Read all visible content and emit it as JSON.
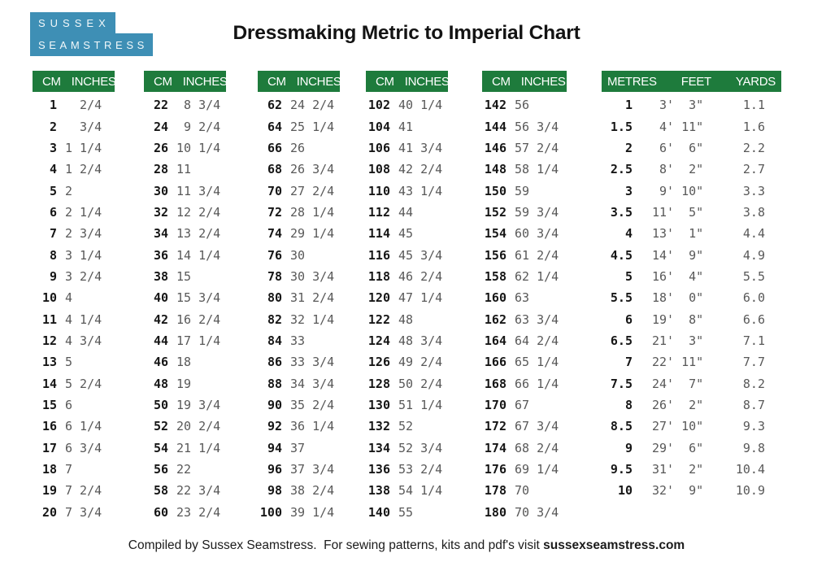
{
  "logo": {
    "line1": "SUSSEX",
    "line2": "SEAMSTRESS"
  },
  "title": "Dressmaking Metric to Imperial Chart",
  "colors": {
    "header_green": "#1E7B3C",
    "logo_blue": "#3E8FB5",
    "cm_text": "#161616",
    "inches_text": "#585858"
  },
  "cm_tables": [
    {
      "headers": [
        "CM",
        "INCHES"
      ],
      "rows": [
        [
          "1",
          "  2/4"
        ],
        [
          "2",
          "  3/4"
        ],
        [
          "3",
          "1 1/4"
        ],
        [
          "4",
          "1 2/4"
        ],
        [
          "5",
          "2"
        ],
        [
          "6",
          "2 1/4"
        ],
        [
          "7",
          "2 3/4"
        ],
        [
          "8",
          "3 1/4"
        ],
        [
          "9",
          "3 2/4"
        ],
        [
          "10",
          "4"
        ],
        [
          "11",
          "4 1/4"
        ],
        [
          "12",
          "4 3/4"
        ],
        [
          "13",
          "5"
        ],
        [
          "14",
          "5 2/4"
        ],
        [
          "15",
          "6"
        ],
        [
          "16",
          "6 1/4"
        ],
        [
          "17",
          "6 3/4"
        ],
        [
          "18",
          "7"
        ],
        [
          "19",
          "7 2/4"
        ],
        [
          "20",
          "7 3/4"
        ]
      ]
    },
    {
      "headers": [
        "CM",
        "INCHES"
      ],
      "rows": [
        [
          "22",
          " 8 3/4"
        ],
        [
          "24",
          " 9 2/4"
        ],
        [
          "26",
          "10 1/4"
        ],
        [
          "28",
          "11"
        ],
        [
          "30",
          "11 3/4"
        ],
        [
          "32",
          "12 2/4"
        ],
        [
          "34",
          "13 2/4"
        ],
        [
          "36",
          "14 1/4"
        ],
        [
          "38",
          "15"
        ],
        [
          "40",
          "15 3/4"
        ],
        [
          "42",
          "16 2/4"
        ],
        [
          "44",
          "17 1/4"
        ],
        [
          "46",
          "18"
        ],
        [
          "48",
          "19"
        ],
        [
          "50",
          "19 3/4"
        ],
        [
          "52",
          "20 2/4"
        ],
        [
          "54",
          "21 1/4"
        ],
        [
          "56",
          "22"
        ],
        [
          "58",
          "22 3/4"
        ],
        [
          "60",
          "23 2/4"
        ]
      ]
    },
    {
      "headers": [
        "CM",
        "INCHES"
      ],
      "rows": [
        [
          "62",
          "24 2/4"
        ],
        [
          "64",
          "25 1/4"
        ],
        [
          "66",
          "26"
        ],
        [
          "68",
          "26 3/4"
        ],
        [
          "70",
          "27 2/4"
        ],
        [
          "72",
          "28 1/4"
        ],
        [
          "74",
          "29 1/4"
        ],
        [
          "76",
          "30"
        ],
        [
          "78",
          "30 3/4"
        ],
        [
          "80",
          "31 2/4"
        ],
        [
          "82",
          "32 1/4"
        ],
        [
          "84",
          "33"
        ],
        [
          "86",
          "33 3/4"
        ],
        [
          "88",
          "34 3/4"
        ],
        [
          "90",
          "35 2/4"
        ],
        [
          "92",
          "36 1/4"
        ],
        [
          "94",
          "37"
        ],
        [
          "96",
          "37 3/4"
        ],
        [
          "98",
          "38 2/4"
        ],
        [
          "100",
          "39 1/4"
        ]
      ]
    },
    {
      "headers": [
        "CM",
        "INCHES"
      ],
      "rows": [
        [
          "102",
          "40 1/4"
        ],
        [
          "104",
          "41"
        ],
        [
          "106",
          "41 3/4"
        ],
        [
          "108",
          "42 2/4"
        ],
        [
          "110",
          "43 1/4"
        ],
        [
          "112",
          "44"
        ],
        [
          "114",
          "45"
        ],
        [
          "116",
          "45 3/4"
        ],
        [
          "118",
          "46 2/4"
        ],
        [
          "120",
          "47 1/4"
        ],
        [
          "122",
          "48"
        ],
        [
          "124",
          "48 3/4"
        ],
        [
          "126",
          "49 2/4"
        ],
        [
          "128",
          "50 2/4"
        ],
        [
          "130",
          "51 1/4"
        ],
        [
          "132",
          "52"
        ],
        [
          "134",
          "52 3/4"
        ],
        [
          "136",
          "53 2/4"
        ],
        [
          "138",
          "54 1/4"
        ],
        [
          "140",
          "55"
        ]
      ]
    },
    {
      "headers": [
        "CM",
        "INCHES"
      ],
      "rows": [
        [
          "142",
          "56"
        ],
        [
          "144",
          "56 3/4"
        ],
        [
          "146",
          "57 2/4"
        ],
        [
          "148",
          "58 1/4"
        ],
        [
          "150",
          "59"
        ],
        [
          "152",
          "59 3/4"
        ],
        [
          "154",
          "60 3/4"
        ],
        [
          "156",
          "61 2/4"
        ],
        [
          "158",
          "62 1/4"
        ],
        [
          "160",
          "63"
        ],
        [
          "162",
          "63 3/4"
        ],
        [
          "164",
          "64 2/4"
        ],
        [
          "166",
          "65 1/4"
        ],
        [
          "168",
          "66 1/4"
        ],
        [
          "170",
          "67"
        ],
        [
          "172",
          "67 3/4"
        ],
        [
          "174",
          "68 2/4"
        ],
        [
          "176",
          "69 1/4"
        ],
        [
          "178",
          "70"
        ],
        [
          "180",
          "70 3/4"
        ]
      ]
    }
  ],
  "metres_table": {
    "headers": [
      "METRES",
      "FEET",
      "YARDS"
    ],
    "rows": [
      [
        "1",
        " 3'  3\"",
        "1.1"
      ],
      [
        "1.5",
        " 4' 11\"",
        "1.6"
      ],
      [
        "2",
        " 6'  6\"",
        "2.2"
      ],
      [
        "2.5",
        " 8'  2\"",
        "2.7"
      ],
      [
        "3",
        " 9' 10\"",
        "3.3"
      ],
      [
        "3.5",
        "11'  5\"",
        "3.8"
      ],
      [
        "4",
        "13'  1\"",
        "4.4"
      ],
      [
        "4.5",
        "14'  9\"",
        "4.9"
      ],
      [
        "5",
        "16'  4\"",
        "5.5"
      ],
      [
        "5.5",
        "18'  0\"",
        "6.0"
      ],
      [
        "6",
        "19'  8\"",
        "6.6"
      ],
      [
        "6.5",
        "21'  3\"",
        "7.1"
      ],
      [
        "7",
        "22' 11\"",
        "7.7"
      ],
      [
        "7.5",
        "24'  7\"",
        "8.2"
      ],
      [
        "8",
        "26'  2\"",
        "8.7"
      ],
      [
        "8.5",
        "27' 10\"",
        "9.3"
      ],
      [
        "9",
        "29'  6\"",
        "9.8"
      ],
      [
        "9.5",
        "31'  2\"",
        "10.4"
      ],
      [
        "10",
        "32'  9\"",
        "10.9"
      ]
    ]
  },
  "footer": {
    "text_regular": "Compiled by Sussex Seamstress.  For sewing patterns, kits and pdf's visit ",
    "text_bold": "sussexseamstress.com"
  }
}
